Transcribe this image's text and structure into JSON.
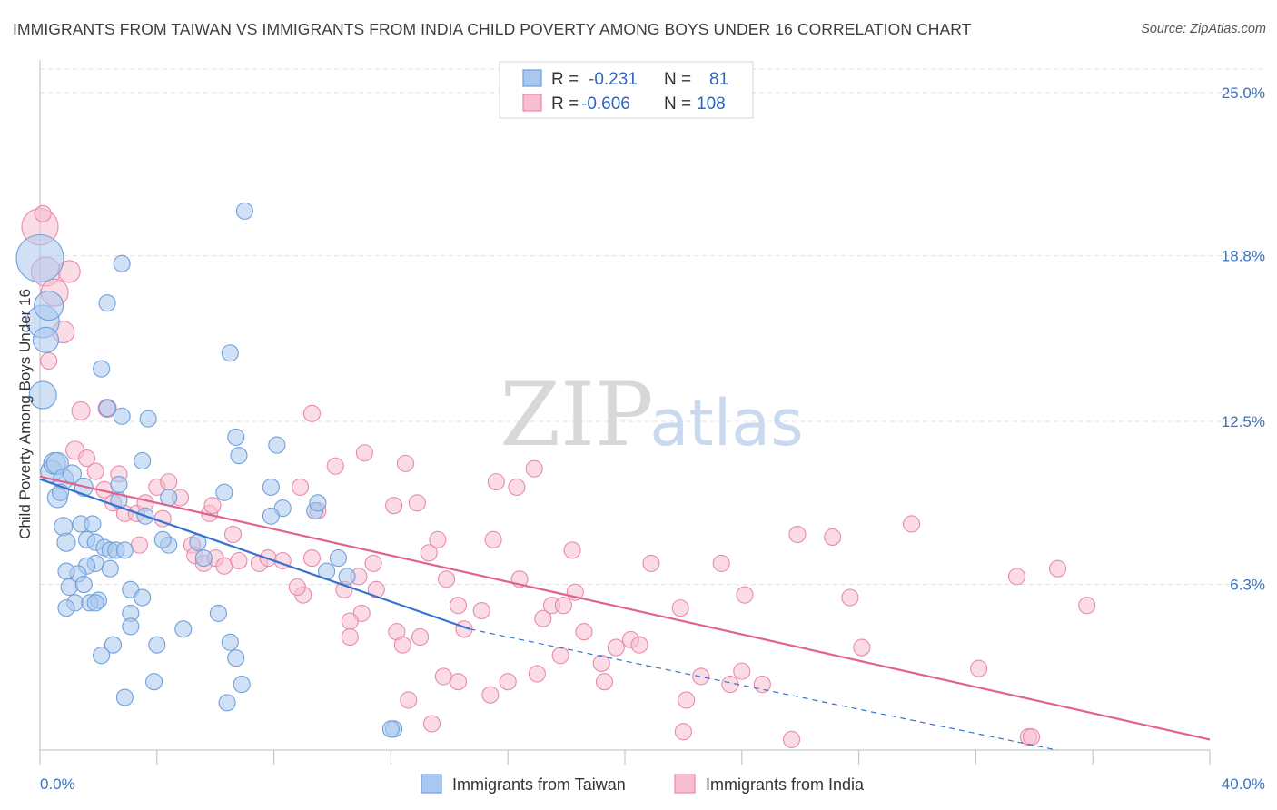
{
  "header": {
    "title": "IMMIGRANTS FROM TAIWAN VS IMMIGRANTS FROM INDIA CHILD POVERTY AMONG BOYS UNDER 16 CORRELATION CHART",
    "source": "Source: ZipAtlas.com"
  },
  "watermark": {
    "zip": "ZIP",
    "atlas": "atlas"
  },
  "legend": {
    "taiwan": {
      "r_label": "R =",
      "r_value": "-0.231",
      "n_label": "N =",
      "n_value": "81"
    },
    "india": {
      "r_label": "R =",
      "r_value": "-0.606",
      "n_label": "N =",
      "n_value": "108"
    }
  },
  "bottom_legend": {
    "taiwan": "Immigrants from Taiwan",
    "india": "Immigrants from India"
  },
  "chart_data": {
    "type": "scatter",
    "ylabel": "Child Poverty Among Boys Under 16",
    "xlim": [
      0,
      40
    ],
    "ylim": [
      0,
      25.9
    ],
    "x_tick_labels": {
      "min": "0.0%",
      "max": "40.0%"
    },
    "y_ticks": [
      {
        "value": 6.3,
        "label": "6.3%"
      },
      {
        "value": 12.5,
        "label": "12.5%"
      },
      {
        "value": 18.8,
        "label": "18.8%"
      },
      {
        "value": 25.0,
        "label": "25.0%"
      }
    ],
    "grid": true,
    "legend_position": "top-center",
    "colors": {
      "taiwan_fill": "#aac8ef",
      "taiwan_stroke": "#6f9fdc",
      "taiwan_line": "#3572d0",
      "india_fill": "#f7bdd0",
      "india_stroke": "#e98aa9",
      "india_line": "#e0628d"
    },
    "series": [
      {
        "name": "Immigrants from Taiwan",
        "trend": {
          "x": [
            0,
            14.7
          ],
          "y": [
            10.3,
            4.6
          ],
          "dashed_to": [
            40,
            -1.2
          ]
        },
        "points": [
          [
            0.0,
            18.7,
            26
          ],
          [
            0.1,
            16.3,
            18
          ],
          [
            0.2,
            15.6,
            14
          ],
          [
            0.3,
            16.9,
            16
          ],
          [
            0.1,
            13.5,
            15
          ],
          [
            0.4,
            10.6,
            12
          ],
          [
            0.5,
            10.9,
            12
          ],
          [
            0.6,
            10.9,
            12
          ],
          [
            0.8,
            10.3,
            11
          ],
          [
            1.1,
            10.5,
            10
          ],
          [
            0.6,
            9.6,
            11
          ],
          [
            0.7,
            9.8,
            9
          ],
          [
            1.5,
            10.0,
            10
          ],
          [
            0.8,
            8.5,
            10
          ],
          [
            0.9,
            7.9,
            10
          ],
          [
            1.4,
            8.6,
            9
          ],
          [
            1.8,
            8.6,
            9
          ],
          [
            1.6,
            8.0,
            9
          ],
          [
            1.9,
            7.9,
            9
          ],
          [
            2.2,
            7.7,
            9
          ],
          [
            2.4,
            7.6,
            9
          ],
          [
            2.6,
            7.6,
            9
          ],
          [
            2.9,
            7.6,
            9
          ],
          [
            1.9,
            7.1,
            9
          ],
          [
            1.6,
            7.0,
            9
          ],
          [
            1.3,
            6.7,
            9
          ],
          [
            0.9,
            6.8,
            9
          ],
          [
            1.0,
            6.2,
            9
          ],
          [
            1.5,
            6.3,
            9
          ],
          [
            2.0,
            5.7,
            9
          ],
          [
            1.2,
            5.6,
            9
          ],
          [
            1.7,
            5.6,
            9
          ],
          [
            1.9,
            5.6,
            9
          ],
          [
            0.9,
            5.4,
            9
          ],
          [
            2.4,
            6.9,
            9
          ],
          [
            3.1,
            6.1,
            9
          ],
          [
            3.5,
            5.8,
            9
          ],
          [
            3.1,
            5.2,
            9
          ],
          [
            3.1,
            4.7,
            9
          ],
          [
            2.5,
            4.0,
            9
          ],
          [
            2.1,
            3.6,
            9
          ],
          [
            2.9,
            2.0,
            9
          ],
          [
            3.9,
            2.6,
            9
          ],
          [
            4.0,
            4.0,
            9
          ],
          [
            4.9,
            4.6,
            9
          ],
          [
            4.4,
            7.8,
            9
          ],
          [
            5.4,
            7.9,
            9
          ],
          [
            5.6,
            7.3,
            9
          ],
          [
            4.4,
            9.6,
            9
          ],
          [
            3.6,
            8.9,
            9
          ],
          [
            2.7,
            9.5,
            9
          ],
          [
            2.7,
            10.1,
            9
          ],
          [
            3.5,
            11.0,
            9
          ],
          [
            2.8,
            12.7,
            9
          ],
          [
            2.3,
            13.0,
            9
          ],
          [
            3.7,
            12.6,
            9
          ],
          [
            2.1,
            14.5,
            9
          ],
          [
            2.3,
            17.0,
            9
          ],
          [
            2.8,
            18.5,
            9
          ],
          [
            6.5,
            15.1,
            9
          ],
          [
            7.0,
            20.5,
            9
          ],
          [
            6.7,
            11.9,
            9
          ],
          [
            6.8,
            11.2,
            9
          ],
          [
            8.1,
            11.6,
            9
          ],
          [
            7.9,
            10.0,
            9
          ],
          [
            8.3,
            9.2,
            9
          ],
          [
            7.9,
            8.9,
            9
          ],
          [
            9.4,
            9.1,
            9
          ],
          [
            9.5,
            9.4,
            9
          ],
          [
            6.3,
            9.8,
            9
          ],
          [
            6.1,
            5.2,
            9
          ],
          [
            6.5,
            4.1,
            9
          ],
          [
            6.7,
            3.5,
            9
          ],
          [
            6.9,
            2.5,
            9
          ],
          [
            6.4,
            1.8,
            9
          ],
          [
            12.1,
            0.8,
            9
          ],
          [
            12.0,
            0.8,
            9
          ],
          [
            9.8,
            6.8,
            9
          ],
          [
            10.5,
            6.6,
            9
          ],
          [
            10.2,
            7.3,
            9
          ],
          [
            4.2,
            8.0,
            9
          ]
        ]
      },
      {
        "name": "Immigrants from India",
        "trend": {
          "x": [
            0,
            40
          ],
          "y": [
            10.4,
            0.4
          ]
        },
        "points": [
          [
            0.0,
            19.9,
            20
          ],
          [
            0.2,
            18.2,
            16
          ],
          [
            0.5,
            17.4,
            15
          ],
          [
            1.0,
            18.2,
            12
          ],
          [
            0.8,
            15.9,
            12
          ],
          [
            1.4,
            12.9,
            10
          ],
          [
            2.3,
            13.0,
            10
          ],
          [
            1.2,
            11.4,
            10
          ],
          [
            1.6,
            11.1,
            9
          ],
          [
            1.9,
            10.6,
            9
          ],
          [
            2.2,
            9.9,
            9
          ],
          [
            2.7,
            10.5,
            9
          ],
          [
            2.5,
            9.4,
            9
          ],
          [
            2.9,
            9.0,
            9
          ],
          [
            3.3,
            9.0,
            9
          ],
          [
            3.6,
            9.4,
            9
          ],
          [
            4.0,
            10.0,
            9
          ],
          [
            4.4,
            10.2,
            9
          ],
          [
            4.8,
            9.6,
            9
          ],
          [
            4.2,
            8.8,
            9
          ],
          [
            3.4,
            7.8,
            9
          ],
          [
            5.2,
            7.8,
            9
          ],
          [
            5.3,
            7.4,
            9
          ],
          [
            5.6,
            7.1,
            9
          ],
          [
            5.8,
            9.0,
            9
          ],
          [
            5.9,
            9.3,
            9
          ],
          [
            6.0,
            7.3,
            9
          ],
          [
            6.3,
            7.0,
            9
          ],
          [
            6.8,
            7.2,
            9
          ],
          [
            6.6,
            8.2,
            9
          ],
          [
            7.5,
            7.1,
            9
          ],
          [
            7.8,
            7.3,
            9
          ],
          [
            8.3,
            7.2,
            9
          ],
          [
            8.9,
            10.0,
            9
          ],
          [
            9.5,
            9.1,
            9
          ],
          [
            9.3,
            7.3,
            9
          ],
          [
            9.0,
            5.9,
            9
          ],
          [
            8.8,
            6.2,
            9
          ],
          [
            9.3,
            12.8,
            9
          ],
          [
            10.1,
            10.8,
            9
          ],
          [
            11.1,
            11.3,
            9
          ],
          [
            12.5,
            10.9,
            9
          ],
          [
            12.1,
            9.3,
            9
          ],
          [
            12.9,
            9.4,
            9
          ],
          [
            13.3,
            7.5,
            9
          ],
          [
            13.6,
            8.0,
            9
          ],
          [
            11.4,
            7.1,
            9
          ],
          [
            10.9,
            6.6,
            9
          ],
          [
            10.4,
            6.1,
            9
          ],
          [
            11.5,
            6.1,
            9
          ],
          [
            11.0,
            5.2,
            9
          ],
          [
            10.6,
            4.9,
            9
          ],
          [
            10.6,
            4.3,
            9
          ],
          [
            12.2,
            4.5,
            9
          ],
          [
            12.4,
            4.0,
            9
          ],
          [
            13.0,
            4.3,
            9
          ],
          [
            13.9,
            6.5,
            9
          ],
          [
            14.3,
            5.5,
            9
          ],
          [
            14.5,
            4.6,
            9
          ],
          [
            15.1,
            5.3,
            9
          ],
          [
            15.5,
            8.0,
            9
          ],
          [
            15.6,
            10.2,
            9
          ],
          [
            16.3,
            10.0,
            9
          ],
          [
            16.9,
            10.7,
            9
          ],
          [
            16.4,
            6.5,
            9
          ],
          [
            17.2,
            5.0,
            9
          ],
          [
            17.5,
            5.5,
            9
          ],
          [
            17.9,
            5.5,
            9
          ],
          [
            18.2,
            7.6,
            9
          ],
          [
            18.3,
            6.0,
            9
          ],
          [
            17.8,
            3.6,
            9
          ],
          [
            18.6,
            4.5,
            9
          ],
          [
            17.0,
            2.9,
            9
          ],
          [
            16.0,
            2.6,
            9
          ],
          [
            15.4,
            2.1,
            9
          ],
          [
            14.3,
            2.6,
            9
          ],
          [
            13.8,
            2.8,
            9
          ],
          [
            12.6,
            1.9,
            9
          ],
          [
            13.4,
            1.0,
            9
          ],
          [
            19.2,
            3.3,
            9
          ],
          [
            19.3,
            2.6,
            9
          ],
          [
            19.7,
            3.9,
            9
          ],
          [
            20.2,
            4.2,
            9
          ],
          [
            20.5,
            4.0,
            9
          ],
          [
            20.9,
            7.1,
            9
          ],
          [
            21.9,
            5.4,
            9
          ],
          [
            22.6,
            2.8,
            9
          ],
          [
            22.1,
            1.9,
            9
          ],
          [
            22.0,
            0.7,
            9
          ],
          [
            23.3,
            7.1,
            9
          ],
          [
            23.6,
            2.5,
            9
          ],
          [
            24.0,
            3.0,
            9
          ],
          [
            24.7,
            2.5,
            9
          ],
          [
            24.1,
            5.9,
            9
          ],
          [
            25.7,
            0.4,
            9
          ],
          [
            25.9,
            8.2,
            9
          ],
          [
            27.1,
            8.1,
            9
          ],
          [
            27.7,
            5.8,
            9
          ],
          [
            28.1,
            3.9,
            9
          ],
          [
            29.8,
            8.6,
            9
          ],
          [
            32.1,
            3.1,
            9
          ],
          [
            33.4,
            6.6,
            9
          ],
          [
            33.8,
            0.5,
            9
          ],
          [
            33.9,
            0.5,
            9
          ],
          [
            34.8,
            6.9,
            9
          ],
          [
            35.8,
            5.5,
            9
          ],
          [
            0.3,
            14.8,
            9
          ],
          [
            0.1,
            20.4,
            9
          ]
        ]
      }
    ]
  }
}
